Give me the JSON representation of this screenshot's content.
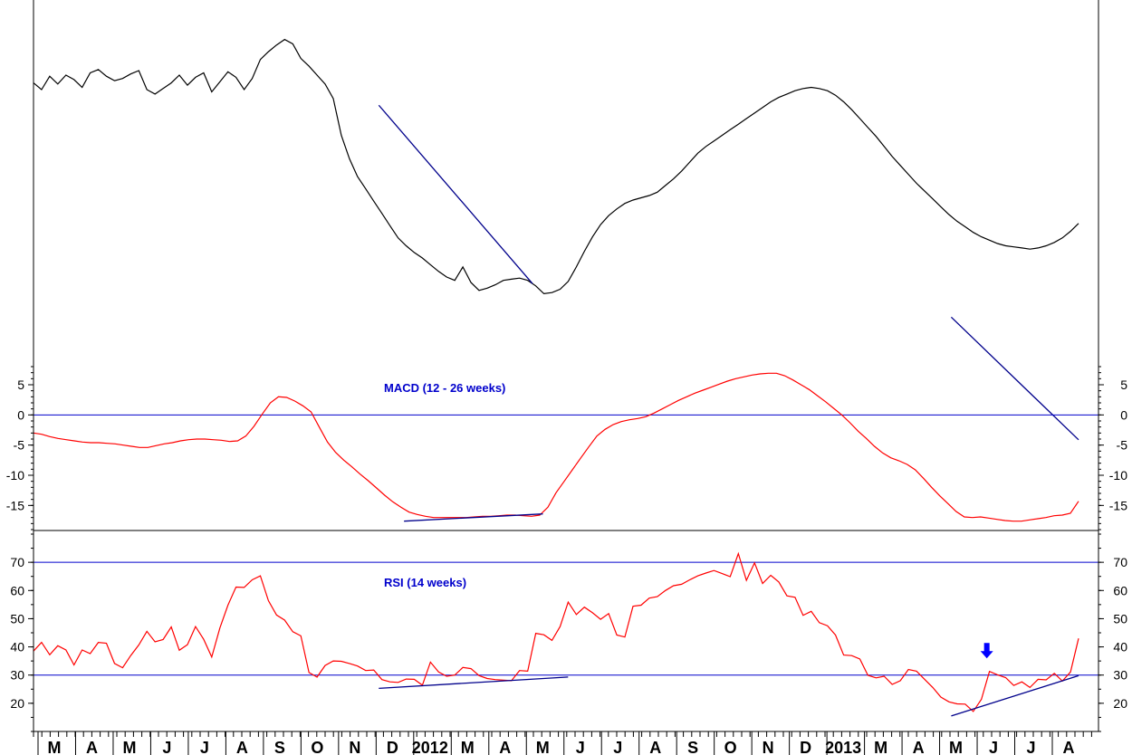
{
  "chart_data": [
    {
      "type": "line",
      "panel": "price",
      "series": [
        {
          "values": [
            100,
            99.4,
            100.6,
            99.9,
            100.7,
            100.3,
            99.6,
            100.9,
            101.2,
            100.6,
            100.2,
            100.4,
            100.8,
            101.1,
            99.4,
            99,
            99.5,
            100,
            100.7,
            99.8,
            100.5,
            100.9,
            99.2,
            100.1,
            101,
            100.5,
            99.4,
            100.4,
            102.1,
            102.8,
            103.4,
            103.9,
            103.5,
            102.2,
            101.5,
            100.7,
            99.9,
            98.6,
            95.3,
            93.2,
            91.6,
            90.5,
            89.4,
            88.3,
            87.2,
            86.1,
            85.4,
            84.8,
            84.3,
            83.7,
            83.1,
            82.6,
            82.3,
            83.5,
            82.1,
            81.4,
            81.6,
            81.9,
            82.3,
            82.4,
            82.5,
            82.3,
            81.8,
            81.1,
            81.2,
            81.5,
            82.2,
            83.5,
            84.9,
            86.2,
            87.3,
            88.1,
            88.7,
            89.2,
            89.5,
            89.7,
            89.9,
            90.2,
            90.8,
            91.4,
            92.1,
            92.9,
            93.7,
            94.3,
            94.8,
            95.3,
            95.8,
            96.3,
            96.8,
            97.3,
            97.8,
            98.3,
            98.7,
            99,
            99.3,
            99.5,
            99.6,
            99.5,
            99.3,
            98.9,
            98.3,
            97.6,
            96.8,
            96,
            95.2,
            94.3,
            93.4,
            92.6,
            91.8,
            91,
            90.3,
            89.6,
            88.9,
            88.2,
            87.6,
            87.1,
            86.6,
            86.2,
            85.9,
            85.6,
            85.4,
            85.3,
            85.2,
            85.1,
            85.2,
            85.4,
            85.7,
            86.1,
            86.7,
            87.4
          ]
        },
        {
          "name": "",
          "values": []
        }
      ],
      "trendlines": [
        {
          "x": [
            "2011-12-19",
            "2012-05-01"
          ],
          "y": [
            58,
            42
          ]
        },
        {
          "x": [
            "2013-05-01",
            "2013-08-20"
          ],
          "y": [
            39,
            28
          ]
        }
      ]
    },
    {
      "type": "line",
      "panel": "macd",
      "title": "MACD (12 - 26 weeks)",
      "yticks": [
        5,
        0,
        -5,
        -10,
        -15
      ],
      "reference_lines": [
        0
      ],
      "ylim": [
        -19,
        8
      ],
      "series": [
        {
          "values": [
            -3,
            -3.2,
            -3.6,
            -3.9,
            -4.1,
            -4.3,
            -4.5,
            -4.6,
            -4.6,
            -4.7,
            -4.8,
            -5,
            -5.2,
            -5.4,
            -5.4,
            -5.1,
            -4.8,
            -4.6,
            -4.3,
            -4.1,
            -4,
            -4,
            -4.1,
            -4.2,
            -4.4,
            -4.3,
            -3.5,
            -1.9,
            0.1,
            2,
            3,
            2.9,
            2.3,
            1.5,
            0.5,
            -2,
            -4.5,
            -6.2,
            -7.5,
            -8.6,
            -9.8,
            -10.9,
            -12.1,
            -13.3,
            -14.4,
            -15.3,
            -16.1,
            -16.5,
            -16.8,
            -17,
            -17,
            -17,
            -17,
            -17,
            -16.9,
            -16.8,
            -16.8,
            -16.7,
            -16.6,
            -16.6,
            -16.7,
            -16.8,
            -16.6,
            -15.3,
            -12.9,
            -11,
            -9.1,
            -7.2,
            -5.3,
            -3.5,
            -2.4,
            -1.6,
            -1.1,
            -0.8,
            -0.6,
            -0.3,
            0.3,
            1,
            1.7,
            2.4,
            3,
            3.6,
            4.1,
            4.6,
            5.1,
            5.6,
            6,
            6.3,
            6.6,
            6.8,
            6.9,
            6.9,
            6.5,
            5.8,
            5,
            4.2,
            3.2,
            2.2,
            1.1,
            0,
            -1.3,
            -2.7,
            -3.9,
            -5.2,
            -6.3,
            -7.1,
            -7.6,
            -8.2,
            -9.1,
            -10.5,
            -12,
            -13.4,
            -14.7,
            -16,
            -16.9,
            -17,
            -16.9,
            -17.1,
            -17.3,
            -17.5,
            -17.6,
            -17.6,
            -17.4,
            -17.2,
            -17,
            -16.7,
            -16.6,
            -16.3,
            -14.3
          ]
        }
      ],
      "trendlines": [
        {
          "x": [
            "2012-01-10",
            "2012-05-10"
          ],
          "y": [
            -17.6,
            -16.4
          ]
        }
      ]
    },
    {
      "type": "line",
      "panel": "rsi",
      "title": "RSI (14 weeks)",
      "yticks": [
        70,
        60,
        50,
        40,
        30,
        20
      ],
      "reference_lines": [
        70,
        30
      ],
      "ylim": [
        10,
        80
      ],
      "series": [
        {
          "values": [
            38.5,
            41.6,
            37.2,
            40.4,
            38.9,
            33.6,
            38.9,
            37.6,
            41.6,
            41.3,
            34.1,
            32.6,
            36.9,
            40.7,
            45.5,
            41.8,
            42.6,
            47.1,
            38.8,
            40.8,
            47.2,
            42.7,
            36.4,
            46.7,
            54.8,
            61.2,
            61.1,
            63.8,
            65.2,
            56.4,
            51.3,
            49.5,
            45.4,
            43.9,
            30.9,
            29.3,
            33.4,
            35,
            34.9,
            34.1,
            33.2,
            31.6,
            31.8,
            28.4,
            27.6,
            27.4,
            28.6,
            28.5,
            26.4,
            34.6,
            31.1,
            29.6,
            30,
            32.7,
            32.3,
            29.8,
            28.8,
            28.4,
            28.2,
            28,
            31.6,
            31.4,
            44.8,
            44.3,
            42.3,
            47.2,
            55.9,
            51.5,
            54.1,
            52.1,
            49.8,
            51.8,
            44.2,
            43.5,
            54.4,
            54.8,
            57.3,
            57.8,
            60,
            61.7,
            62.2,
            63.8,
            65.2,
            66.2,
            67.1,
            66,
            64.9,
            73.1,
            63.6,
            69.8,
            62.5,
            65.4,
            63,
            58.1,
            57.6,
            51.2,
            52.6,
            48.6,
            47.5,
            44.2,
            37.1,
            36.9,
            35.7,
            29.9,
            29,
            29.6,
            26.7,
            28,
            32,
            31.4,
            28.5,
            25.6,
            22.2,
            20.5,
            19.8,
            19.7,
            17.1,
            21.4,
            31.3,
            30.1,
            29.1,
            26.3,
            27.6,
            25.6,
            28.5,
            28.3,
            30.6,
            27.9,
            31.1,
            43
          ]
        }
      ],
      "trendlines": [
        {
          "x": [
            "2011-12-19",
            "2012-06-01"
          ],
          "y": [
            25.3,
            29.3
          ]
        },
        {
          "x": [
            "2013-05-01",
            "2013-08-20"
          ],
          "y": [
            15.5,
            29.8
          ]
        }
      ],
      "annotations": [
        {
          "type": "arrow-down",
          "color": "#0000ff",
          "x": "2013-06-01",
          "y": 38.5
        }
      ]
    }
  ],
  "x_axis": {
    "labels": [
      "M",
      "A",
      "M",
      "J",
      "J",
      "A",
      "S",
      "O",
      "N",
      "D",
      "2012",
      "M",
      "A",
      "M",
      "J",
      "J",
      "A",
      "S",
      "O",
      "N",
      "D",
      "2013",
      "M",
      "A",
      "M",
      "J",
      "J",
      "A"
    ]
  },
  "colors": {
    "price": "#000000",
    "indicator": "#ff0000",
    "reference": "#0000cc",
    "trendline": "#00008b",
    "arrow": "#0000ff"
  }
}
